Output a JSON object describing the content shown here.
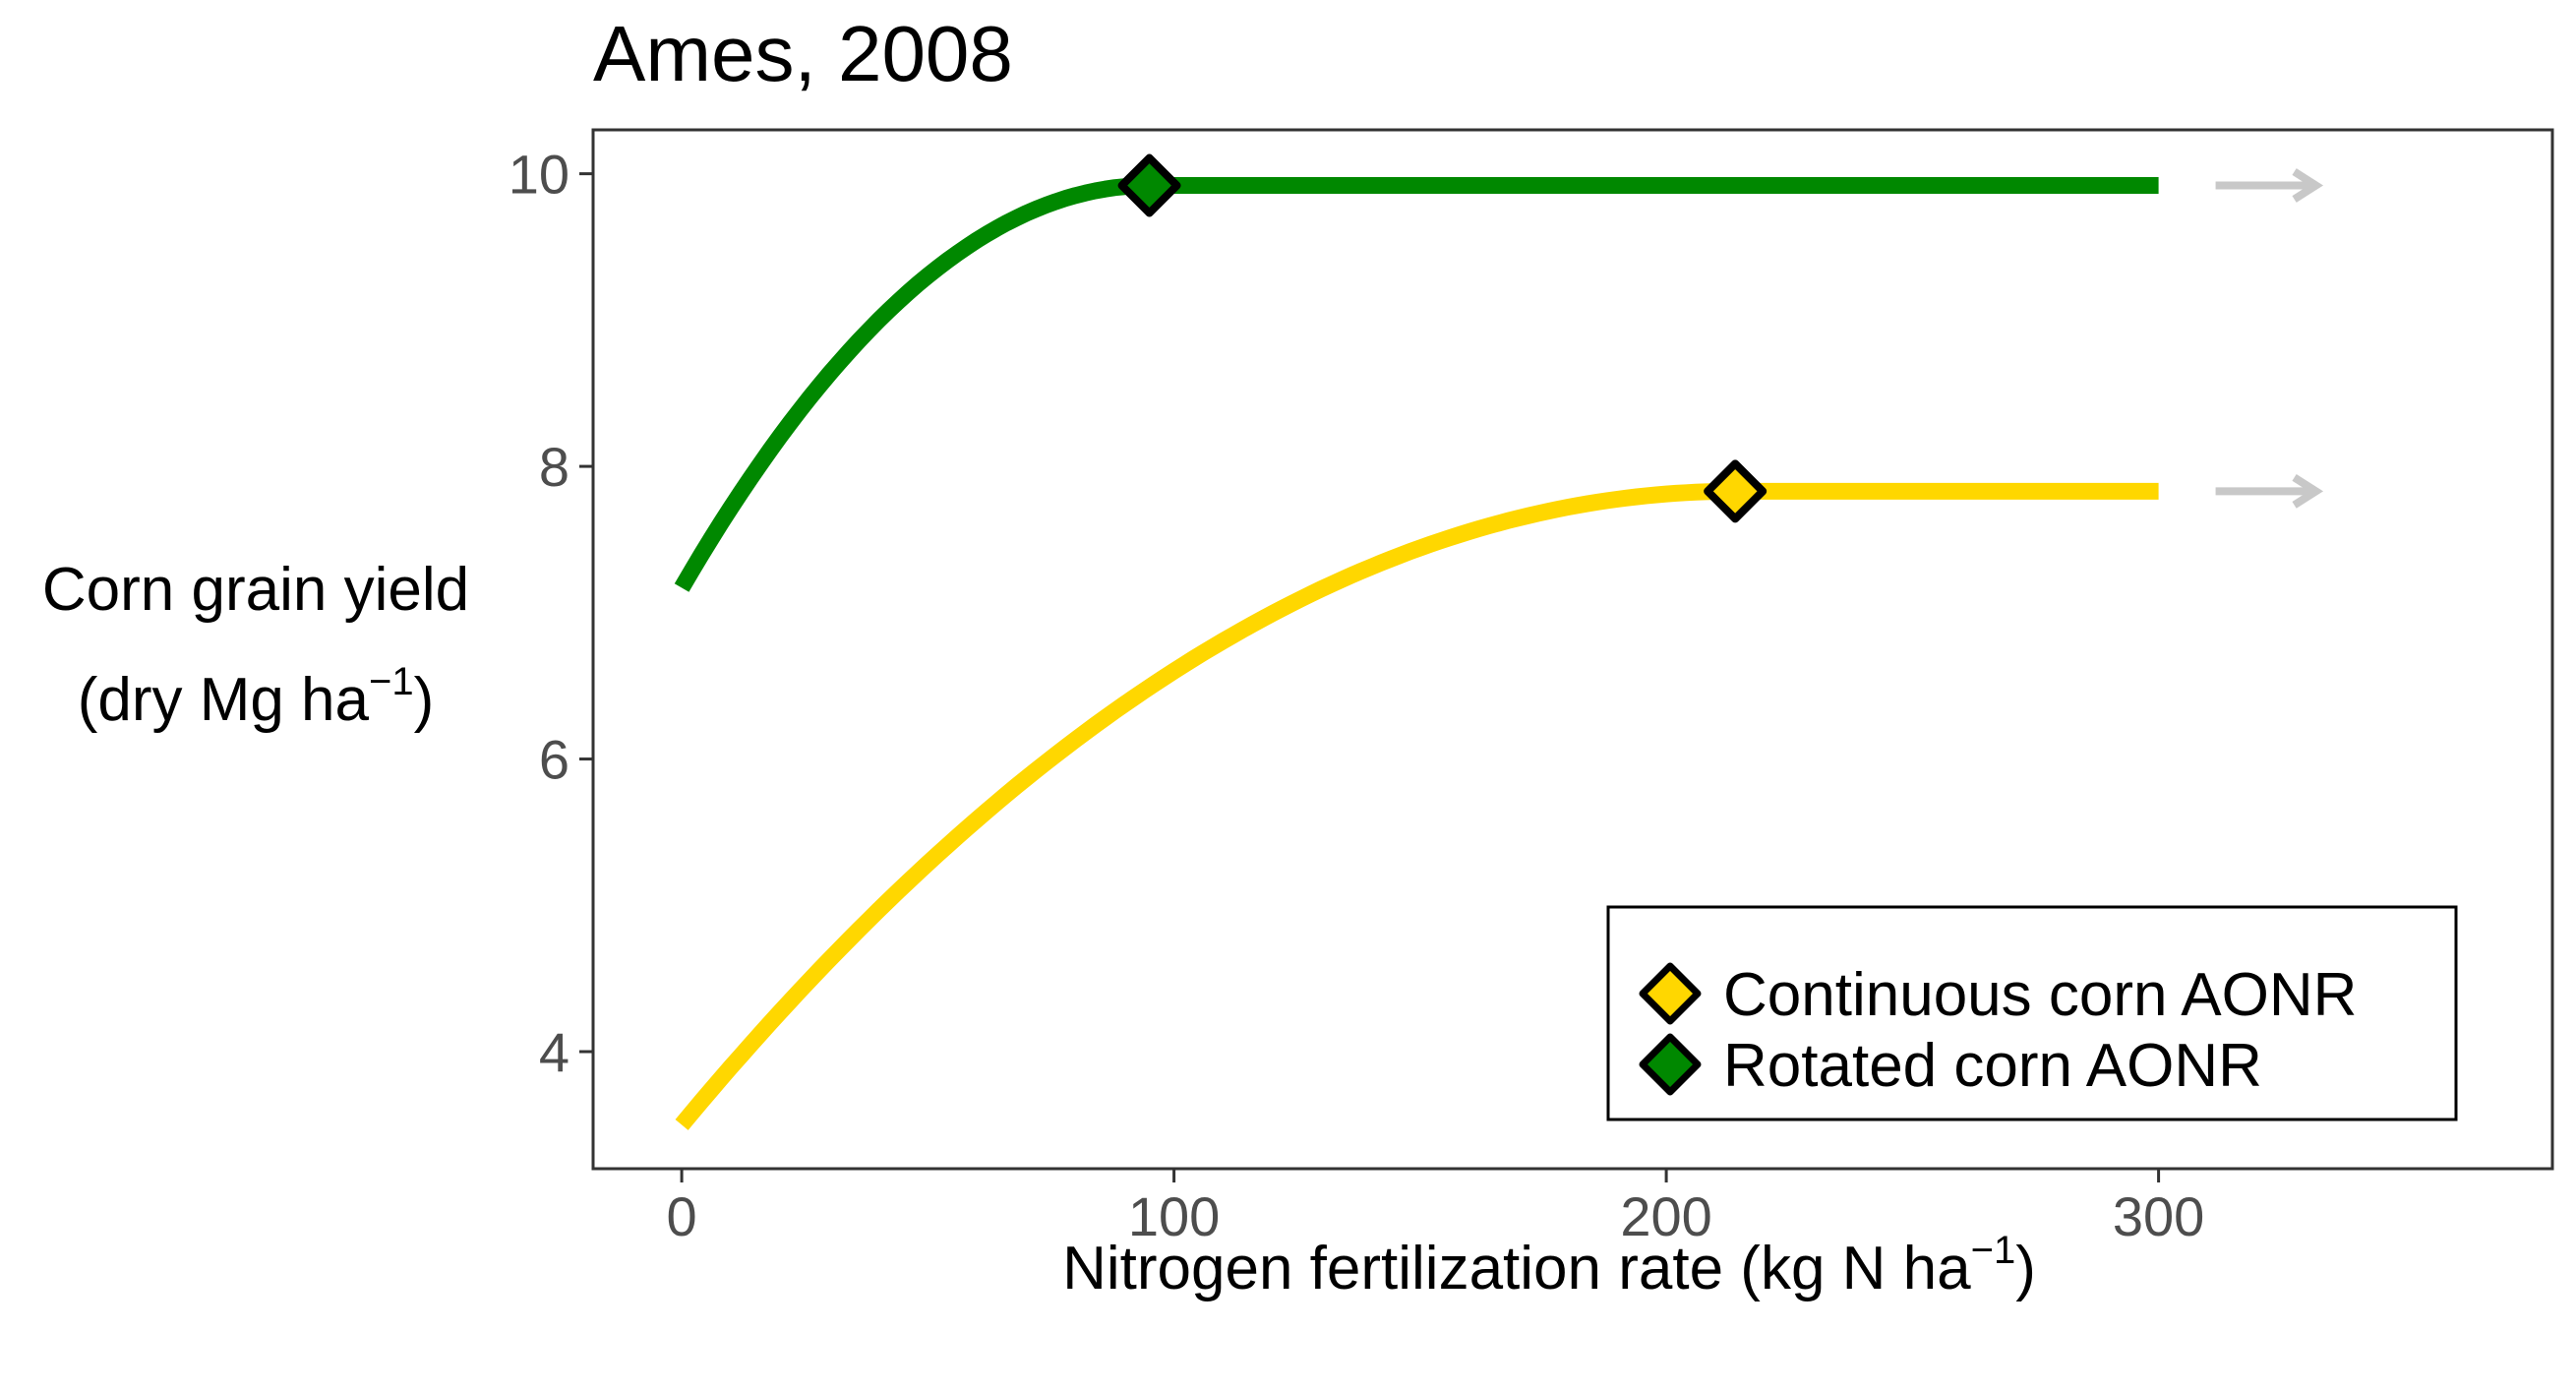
{
  "chart_data": {
    "type": "line",
    "title": "Ames, 2008",
    "xlabel": "Nitrogen fertilization rate (kg N ha",
    "xlabel_sup": "−1",
    "xlabel_end": ")",
    "ylabel_line1": "Corn grain yield",
    "ylabel_line2": "(dry Mg  ha",
    "ylabel_sup": "−1",
    "ylabel_end": ")",
    "xlim": [
      -18,
      380
    ],
    "ylim": [
      3.2,
      10.3
    ],
    "x_ticks": [
      0,
      100,
      200,
      300
    ],
    "x_tick_labels": [
      "0",
      "100",
      "200",
      "300"
    ],
    "y_ticks": [
      4,
      6,
      8,
      10
    ],
    "y_tick_labels": [
      "4",
      "6",
      "8",
      "10"
    ],
    "grid": false,
    "legend_position": "bottom-right",
    "series": [
      {
        "name": "Continuous corn AONR",
        "color": "#FFD700",
        "model": "quadratic-plateau",
        "y_intercept": 3.5,
        "aonr_x": 214,
        "plateau_y": 7.83,
        "x_max": 300,
        "arrow": true
      },
      {
        "name": "Rotated corn AONR",
        "color": "#008800",
        "model": "quadratic-plateau",
        "y_intercept": 7.17,
        "aonr_x": 95,
        "plateau_y": 9.92,
        "x_max": 300,
        "arrow": true
      }
    ],
    "arrow_color": "#C8C8C8"
  }
}
